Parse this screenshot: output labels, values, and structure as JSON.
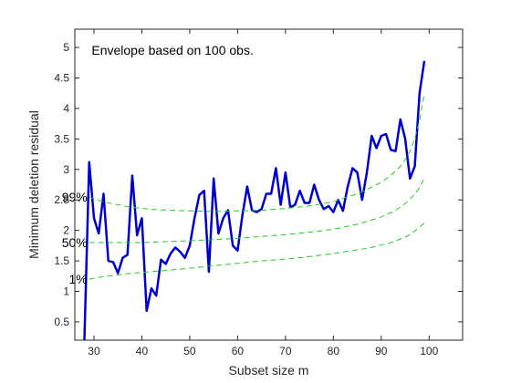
{
  "chart_data": {
    "type": "line",
    "title": "",
    "annotation": "Envelope based on 100 obs.",
    "xlabel": "Subset size m",
    "ylabel": "Minimum deletion residual",
    "xlim": [
      26,
      107
    ],
    "ylim": [
      0.2,
      5.3
    ],
    "xticks": [
      30,
      40,
      50,
      60,
      70,
      80,
      90,
      100
    ],
    "yticks": [
      0.5,
      1,
      1.5,
      2,
      2.5,
      3,
      3.5,
      4,
      4.5,
      5
    ],
    "grid": false,
    "series": [
      {
        "label": "",
        "color": "#0000cc",
        "style": "solid",
        "x": [
          28,
          29,
          30,
          31,
          32,
          33,
          34,
          35,
          36,
          37,
          38,
          39,
          40,
          41,
          42,
          43,
          44,
          45,
          46,
          47,
          48,
          49,
          50,
          51,
          52,
          53,
          54,
          55,
          56,
          57,
          58,
          59,
          60,
          61,
          62,
          63,
          64,
          65,
          66,
          67,
          68,
          69,
          70,
          71,
          72,
          73,
          74,
          75,
          76,
          77,
          78,
          79,
          80,
          81,
          82,
          83,
          84,
          85,
          86,
          87,
          88,
          89,
          90,
          91,
          92,
          93,
          94,
          95,
          96,
          97,
          98,
          99
        ],
        "y": [
          0.2,
          3.12,
          2.2,
          1.95,
          2.6,
          1.5,
          1.48,
          1.3,
          1.55,
          1.6,
          2.9,
          1.92,
          2.2,
          0.68,
          1.05,
          0.93,
          1.52,
          1.45,
          1.62,
          1.72,
          1.65,
          1.55,
          1.75,
          2.2,
          2.58,
          2.65,
          1.32,
          2.85,
          1.95,
          2.2,
          2.33,
          1.75,
          1.67,
          2.25,
          2.72,
          2.33,
          2.3,
          2.35,
          2.6,
          2.6,
          3.02,
          2.42,
          2.95,
          2.38,
          2.42,
          2.65,
          2.45,
          2.45,
          2.75,
          2.5,
          2.35,
          2.4,
          2.3,
          2.5,
          2.32,
          2.72,
          3.02,
          2.95,
          2.5,
          2.95,
          3.55,
          3.35,
          3.55,
          3.58,
          3.32,
          3.3,
          3.82,
          3.5,
          2.85,
          3.05,
          4.25,
          4.78
        ]
      },
      {
        "label": "99%",
        "color": "#22cc22",
        "style": "dashed",
        "x": [
          29,
          31,
          33,
          35,
          37,
          40,
          43,
          46,
          50,
          55,
          60,
          65,
          70,
          75,
          80,
          85,
          88,
          90,
          92,
          94,
          95,
          96,
          97,
          98,
          99
        ],
        "y": [
          2.55,
          2.49,
          2.45,
          2.42,
          2.39,
          2.36,
          2.34,
          2.33,
          2.32,
          2.31,
          2.32,
          2.33,
          2.36,
          2.4,
          2.47,
          2.6,
          2.71,
          2.79,
          2.9,
          3.05,
          3.16,
          3.3,
          3.5,
          3.8,
          4.25
        ]
      },
      {
        "label": "50%",
        "color": "#22cc22",
        "style": "dashed",
        "x": [
          29,
          31,
          33,
          35,
          37,
          40,
          43,
          46,
          50,
          55,
          60,
          65,
          70,
          75,
          80,
          85,
          88,
          90,
          92,
          94,
          95,
          96,
          97,
          98,
          99
        ],
        "y": [
          1.8,
          1.8,
          1.8,
          1.8,
          1.8,
          1.8,
          1.81,
          1.82,
          1.83,
          1.85,
          1.87,
          1.9,
          1.93,
          1.97,
          2.02,
          2.1,
          2.17,
          2.22,
          2.29,
          2.38,
          2.44,
          2.51,
          2.6,
          2.7,
          2.86
        ]
      },
      {
        "label": "1%",
        "color": "#22cc22",
        "style": "dashed",
        "x": [
          29,
          31,
          33,
          35,
          37,
          40,
          43,
          46,
          50,
          55,
          60,
          65,
          70,
          75,
          80,
          85,
          88,
          90,
          92,
          94,
          95,
          96,
          97,
          98,
          99
        ],
        "y": [
          1.2,
          1.23,
          1.25,
          1.27,
          1.29,
          1.31,
          1.33,
          1.35,
          1.38,
          1.42,
          1.46,
          1.5,
          1.53,
          1.57,
          1.62,
          1.68,
          1.72,
          1.76,
          1.8,
          1.86,
          1.89,
          1.93,
          1.99,
          2.05,
          2.12
        ]
      }
    ]
  }
}
